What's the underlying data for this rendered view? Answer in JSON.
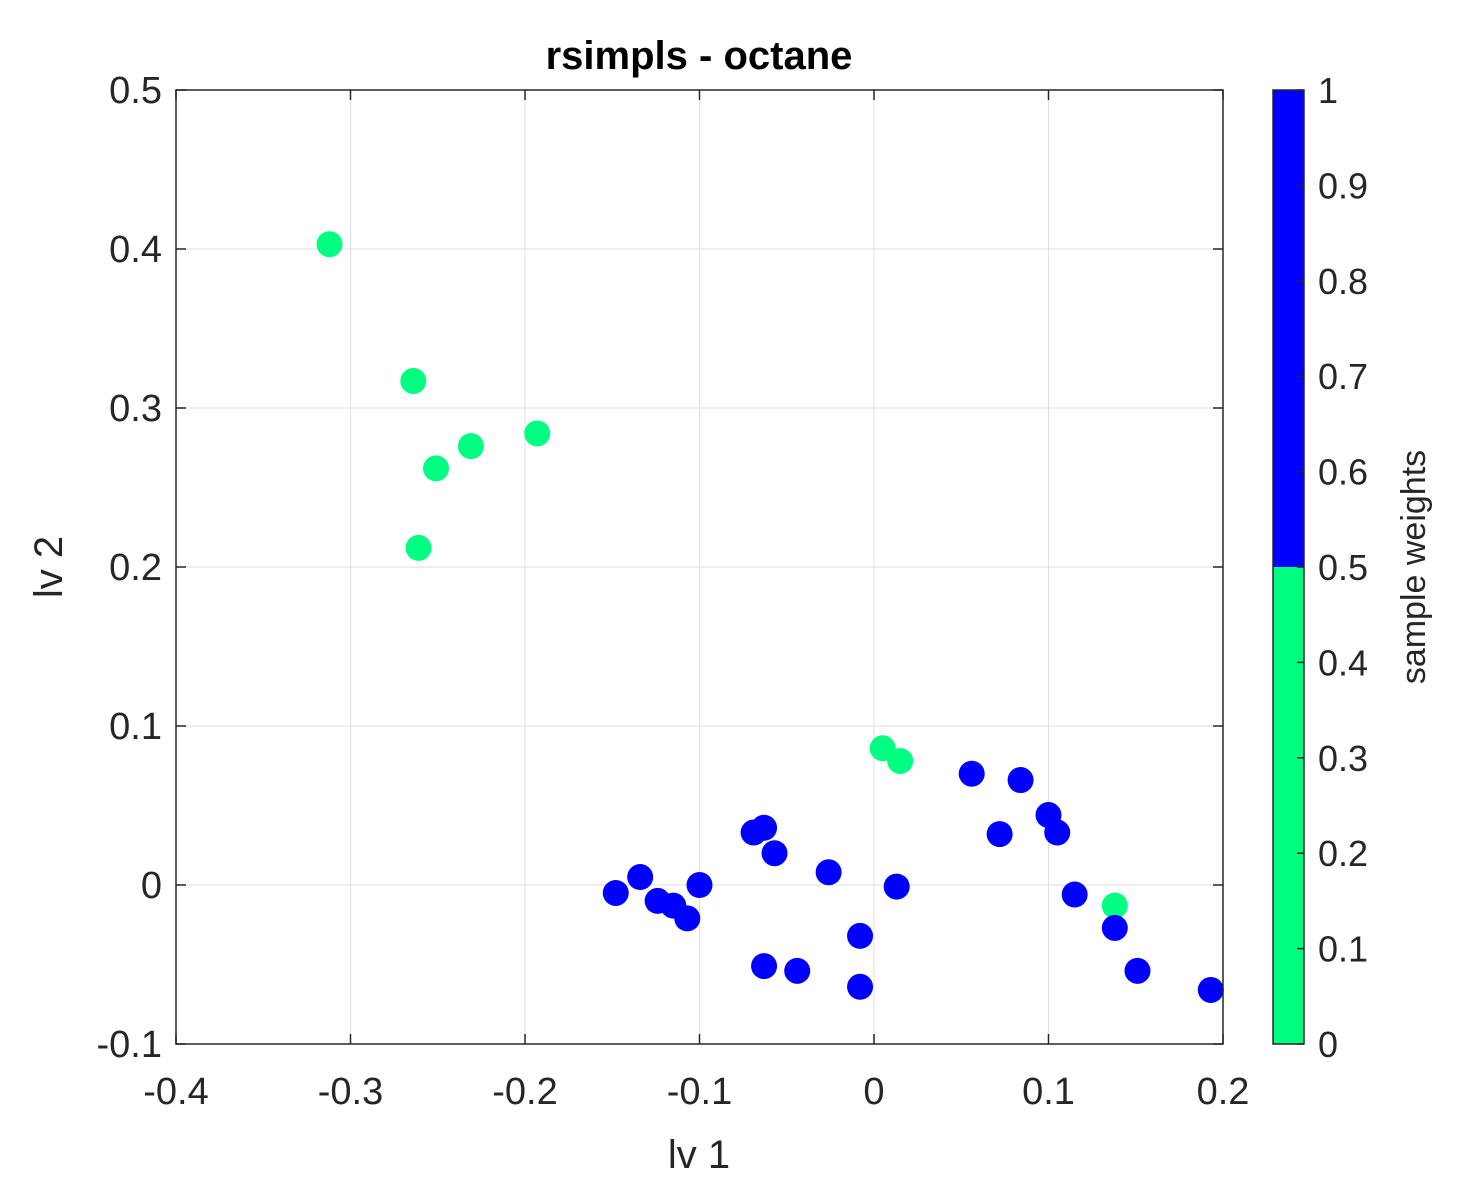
{
  "chart_data": {
    "type": "scatter",
    "title": "rsimpls - octane",
    "xlabel": "lv 1",
    "ylabel": "lv 2",
    "xlim": [
      -0.4,
      0.2
    ],
    "ylim": [
      -0.1,
      0.5
    ],
    "xticks": [
      -0.4,
      -0.3,
      -0.2,
      -0.1,
      0,
      0.1,
      0.2
    ],
    "xtick_labels": [
      "-0.4",
      "-0.3",
      "-0.2",
      "-0.1",
      "0",
      "0.1",
      "0.2"
    ],
    "yticks": [
      -0.1,
      0,
      0.1,
      0.2,
      0.3,
      0.4,
      0.5
    ],
    "ytick_labels": [
      "-0.1",
      "0",
      "0.1",
      "0.2",
      "0.3",
      "0.4",
      "0.5"
    ],
    "grid": true,
    "colorbar": {
      "label": "sample weights",
      "ticks": [
        0,
        0.1,
        0.2,
        0.3,
        0.4,
        0.5,
        0.6,
        0.7,
        0.8,
        0.9,
        1
      ],
      "tick_labels": [
        "0",
        "0.1",
        "0.2",
        "0.3",
        "0.4",
        "0.5",
        "0.6",
        "0.7",
        "0.8",
        "0.9",
        "1"
      ],
      "range": [
        0,
        1
      ],
      "segments": [
        {
          "from": 0,
          "to": 0.5,
          "color": "#00ff80"
        },
        {
          "from": 0.5,
          "to": 1,
          "color": "#0000ff"
        }
      ]
    },
    "points": [
      {
        "x": -0.312,
        "y": 0.403,
        "weight": 0
      },
      {
        "x": -0.264,
        "y": 0.317,
        "weight": 0
      },
      {
        "x": -0.251,
        "y": 0.262,
        "weight": 0
      },
      {
        "x": -0.231,
        "y": 0.276,
        "weight": 0
      },
      {
        "x": -0.193,
        "y": 0.284,
        "weight": 0
      },
      {
        "x": -0.261,
        "y": 0.212,
        "weight": 0
      },
      {
        "x": 0.005,
        "y": 0.086,
        "weight": 0
      },
      {
        "x": 0.015,
        "y": 0.078,
        "weight": 0
      },
      {
        "x": 0.138,
        "y": -0.013,
        "weight": 0
      },
      {
        "x": -0.148,
        "y": -0.005,
        "weight": 1
      },
      {
        "x": -0.134,
        "y": 0.005,
        "weight": 1
      },
      {
        "x": -0.124,
        "y": -0.01,
        "weight": 1
      },
      {
        "x": -0.115,
        "y": -0.013,
        "weight": 1
      },
      {
        "x": -0.107,
        "y": -0.021,
        "weight": 1
      },
      {
        "x": -0.1,
        "y": 0.0,
        "weight": 1
      },
      {
        "x": -0.069,
        "y": 0.033,
        "weight": 1
      },
      {
        "x": -0.063,
        "y": 0.036,
        "weight": 1
      },
      {
        "x": -0.057,
        "y": 0.02,
        "weight": 1
      },
      {
        "x": -0.063,
        "y": -0.051,
        "weight": 1
      },
      {
        "x": -0.044,
        "y": -0.054,
        "weight": 1
      },
      {
        "x": -0.026,
        "y": 0.008,
        "weight": 1
      },
      {
        "x": -0.008,
        "y": -0.032,
        "weight": 1
      },
      {
        "x": -0.008,
        "y": -0.064,
        "weight": 1
      },
      {
        "x": 0.013,
        "y": -0.001,
        "weight": 1
      },
      {
        "x": 0.056,
        "y": 0.07,
        "weight": 1
      },
      {
        "x": 0.072,
        "y": 0.032,
        "weight": 1
      },
      {
        "x": 0.084,
        "y": 0.066,
        "weight": 1
      },
      {
        "x": 0.1,
        "y": 0.044,
        "weight": 1
      },
      {
        "x": 0.105,
        "y": 0.033,
        "weight": 1
      },
      {
        "x": 0.115,
        "y": -0.006,
        "weight": 1
      },
      {
        "x": 0.138,
        "y": -0.027,
        "weight": 1
      },
      {
        "x": 0.151,
        "y": -0.054,
        "weight": 1
      },
      {
        "x": 0.193,
        "y": -0.066,
        "weight": 1
      }
    ]
  }
}
